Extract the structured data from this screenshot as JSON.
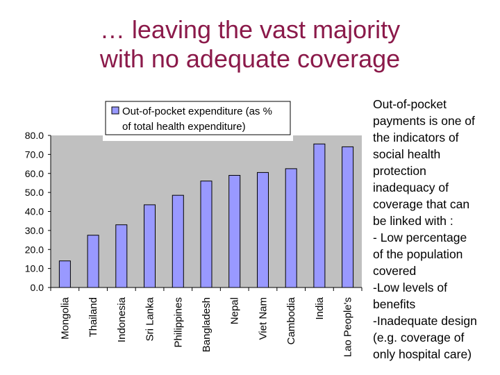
{
  "slide": {
    "title_line1": "… leaving the vast majority",
    "title_line2": "with no adequate coverage"
  },
  "side_text": {
    "lines": [
      "Out-of-pocket",
      "payments is one of",
      "the indicators of",
      "social health",
      "protection",
      "inadequacy of",
      "coverage that can",
      "be linked with :",
      "- Low percentage",
      "of the population",
      "covered",
      "-Low levels of",
      "benefits",
      "-Inadequate design",
      "(e.g. coverage of",
      "only hospital care)"
    ]
  },
  "colors": {
    "title": "#8b1a4a",
    "bar_fill": "#9999ff",
    "plot_bg": "#c0c0c0"
  },
  "chart_data": {
    "type": "bar",
    "categories": [
      "Mongolia",
      "Thailand",
      "Indonesia",
      "Sri Lanka",
      "Philippines",
      "Bangladesh",
      "Nepal",
      "Viet Nam",
      "Cambodia",
      "India",
      "Lao People's"
    ],
    "series": [
      {
        "name": "Out-of-pocket expenditure (as % of total health expenditure)",
        "legend_line1": "Out-of-pocket expenditure (as  %",
        "legend_line2": "of total health expenditure)",
        "values": [
          14,
          27.5,
          33,
          43.5,
          48.5,
          56,
          59,
          60.5,
          62.5,
          75.5,
          74
        ]
      }
    ],
    "ylim": [
      0,
      80
    ],
    "yticks": [
      "0.0",
      "10.0",
      "20.0",
      "30.0",
      "40.0",
      "50.0",
      "60.0",
      "70.0",
      "80.0"
    ],
    "ytick_values": [
      0,
      10,
      20,
      30,
      40,
      50,
      60,
      70,
      80
    ],
    "legend_position": "top",
    "grid": false
  }
}
